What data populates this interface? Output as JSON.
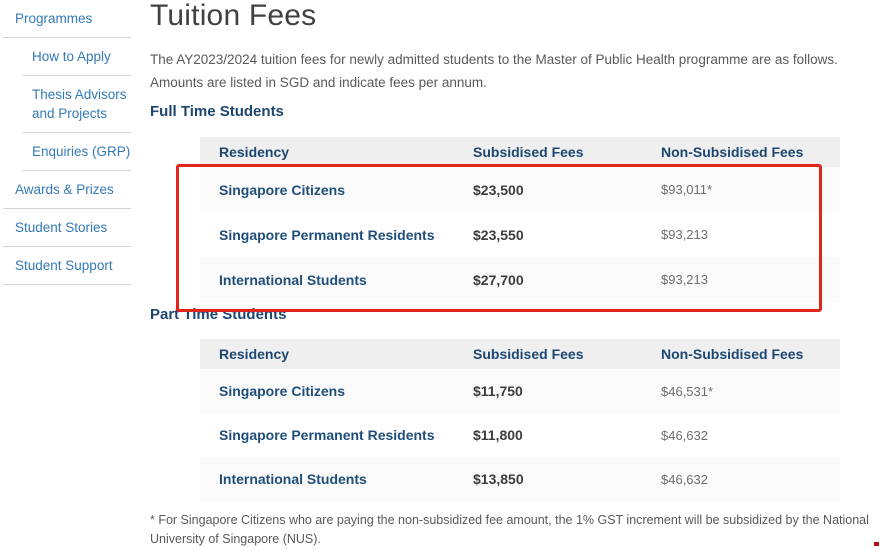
{
  "sidebar": {
    "items": [
      {
        "label": "Programmes",
        "level": "top"
      },
      {
        "label": "How to Apply",
        "level": "sub"
      },
      {
        "label": "Thesis Advisors and Projects",
        "level": "sub"
      },
      {
        "label": "Enquiries (GRP)",
        "level": "sub"
      },
      {
        "label": "Awards & Prizes",
        "level": "top"
      },
      {
        "label": "Student Stories",
        "level": "top"
      },
      {
        "label": "Student Support",
        "level": "top"
      }
    ]
  },
  "page": {
    "title": "Tuition Fees",
    "intro": "The AY2023/2024 tuition fees for newly admitted students to the Master of Public Health programme are as follows. Amounts are listed in SGD and indicate fees per annum.",
    "footnote": "* For Singapore Citizens who are paying the non-subsidized fee amount, the 1% GST increment will be subsidized by the National University of Singapore (NUS)."
  },
  "tables": [
    {
      "section_heading": "Full Time Students",
      "headers": [
        "Residency",
        "Subsidised Fees",
        "Non-Subsidised Fees"
      ],
      "rows": [
        {
          "residency": "Singapore Citizens",
          "subsidised": "$23,500",
          "non_subsidised": "$93,011*"
        },
        {
          "residency": "Singapore Permanent Residents",
          "subsidised": "$23,550",
          "non_subsidised": "$93,213"
        },
        {
          "residency": "International Students",
          "subsidised": "$27,700",
          "non_subsidised": "$93,213"
        }
      ]
    },
    {
      "section_heading": "Part Time Students",
      "headers": [
        "Residency",
        "Subsidised Fees",
        "Non-Subsidised Fees"
      ],
      "rows": [
        {
          "residency": "Singapore Citizens",
          "subsidised": "$11,750",
          "non_subsidised": "$46,531*"
        },
        {
          "residency": "Singapore Permanent Residents",
          "subsidised": "$11,800",
          "non_subsidised": "$46,632"
        },
        {
          "residency": "International Students",
          "subsidised": "$13,850",
          "non_subsidised": "$46,632"
        }
      ]
    }
  ],
  "annotation": {
    "highlight_color": "#e1251b",
    "highlighted_region": "full-time-students-table-rows"
  },
  "colors": {
    "link_blue": "#337ab7",
    "table_navy": "#1f4e79",
    "heading_navy": "#1d4671",
    "body_text": "#58595b",
    "table_header_bg": "#efefef",
    "row_stripe_bg": "#fafafa"
  }
}
